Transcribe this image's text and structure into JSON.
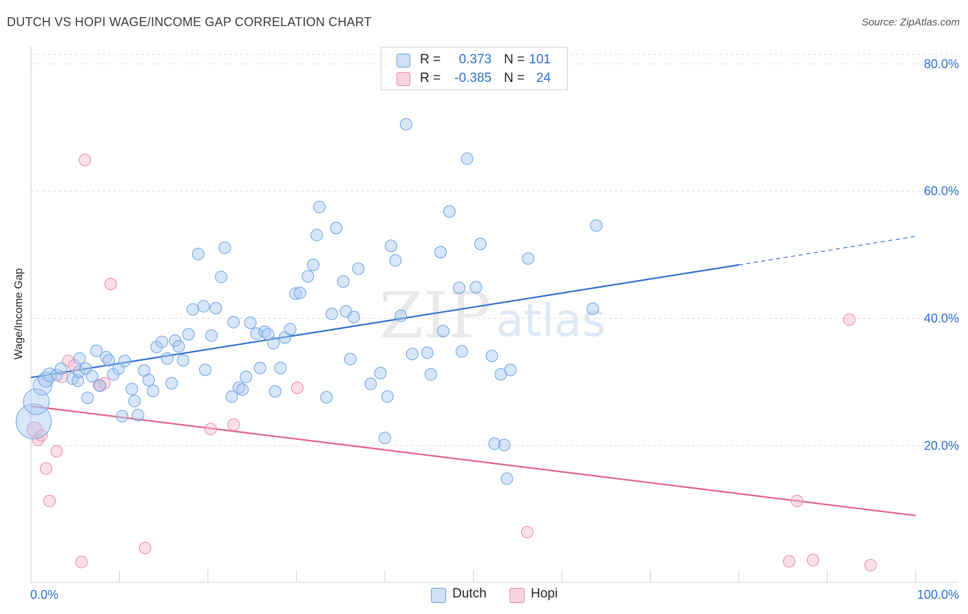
{
  "title": "DUTCH VS HOPI WAGE/INCOME GAP CORRELATION CHART",
  "source": "Source: ZipAtlas.com",
  "watermark": {
    "zip": "ZIP",
    "atlas": "atlas"
  },
  "legend": {
    "rows": [
      {
        "r_label": "R =",
        "r_value": "0.373",
        "n_label": "N =",
        "n_value": "101",
        "color": "#a7c8f2"
      },
      {
        "r_label": "R =",
        "r_value": "-0.385",
        "n_label": "N =",
        "n_value": "24",
        "color": "#f7b8cc"
      }
    ]
  },
  "bottom_legend": [
    {
      "label": "Dutch",
      "color": "#a7c8f2"
    },
    {
      "label": "Hopi",
      "color": "#f7b8cc"
    }
  ],
  "colors": {
    "dutch_fill": "#a7c8f2",
    "dutch_stroke": "#6c9fdf",
    "dutch_line": "#2f6fce",
    "hopi_fill": "#f7b8cc",
    "hopi_stroke": "#e98aa8",
    "hopi_line": "#e0608d",
    "tick_label": "#2f6fce",
    "grid": "#dddddd"
  },
  "chart_data": {
    "type": "scatter",
    "title": "DUTCH VS HOPI WAGE/INCOME GAP CORRELATION CHART",
    "xlabel": "",
    "ylabel": "Wage/Income Gap",
    "xlim": [
      0,
      100
    ],
    "ylim": [
      -1.5,
      81.5
    ],
    "x_tick_labels": [
      {
        "value": 0,
        "label": "0.0%"
      },
      {
        "value": 100,
        "label": "100.0%"
      }
    ],
    "y_tick_labels": [
      {
        "value": 20,
        "label": "20.0%"
      },
      {
        "value": 40,
        "label": "40.0%"
      },
      {
        "value": 60,
        "label": "60.0%"
      },
      {
        "value": 80,
        "label": "80.0%"
      }
    ],
    "grid": true,
    "legend_position": "top-center",
    "series": [
      {
        "name": "Dutch",
        "points": [
          [
            0.3,
            23.8,
            3
          ],
          [
            0.6,
            26.9,
            2.2
          ],
          [
            1.3,
            29.4,
            1.6
          ],
          [
            1.7,
            30.4,
            1.3
          ],
          [
            2.1,
            31.1,
            1.2
          ],
          [
            2.9,
            31.1,
            1
          ],
          [
            3.4,
            32.1,
            1
          ],
          [
            4.7,
            30.5,
            1
          ],
          [
            5.3,
            30.2,
            1
          ],
          [
            5.4,
            31.6,
            1
          ],
          [
            5.5,
            33.7,
            1
          ],
          [
            6.2,
            32.1,
            1
          ],
          [
            6.4,
            27.5,
            1
          ],
          [
            6.9,
            30.9,
            1
          ],
          [
            7.4,
            34.9,
            1
          ],
          [
            7.8,
            29.4,
            1
          ],
          [
            8.5,
            33.9,
            1
          ],
          [
            8.8,
            33.4,
            1
          ],
          [
            9.3,
            31.2,
            1
          ],
          [
            9.9,
            32.1,
            1
          ],
          [
            10.3,
            24.6,
            1
          ],
          [
            10.6,
            33.3,
            1
          ],
          [
            11.4,
            28.9,
            1
          ],
          [
            11.7,
            27.0,
            1
          ],
          [
            12.1,
            24.8,
            1
          ],
          [
            12.8,
            31.8,
            1
          ],
          [
            13.3,
            30.3,
            1
          ],
          [
            13.8,
            28.6,
            1
          ],
          [
            14.2,
            35.5,
            1
          ],
          [
            14.8,
            36.3,
            1
          ],
          [
            15.4,
            33.7,
            1
          ],
          [
            15.9,
            29.8,
            1
          ],
          [
            16.3,
            36.5,
            1
          ],
          [
            16.7,
            35.6,
            1
          ],
          [
            17.2,
            33.4,
            1
          ],
          [
            17.8,
            37.5,
            1
          ],
          [
            18.3,
            41.4,
            1
          ],
          [
            18.9,
            50.1,
            1
          ],
          [
            19.5,
            41.9,
            1
          ],
          [
            19.7,
            31.9,
            1
          ],
          [
            20.4,
            37.3,
            1
          ],
          [
            20.9,
            41.6,
            1
          ],
          [
            21.5,
            46.5,
            1
          ],
          [
            21.9,
            51.1,
            1
          ],
          [
            22.7,
            27.7,
            1
          ],
          [
            22.9,
            39.4,
            1
          ],
          [
            23.5,
            29.1,
            1
          ],
          [
            23.9,
            28.8,
            1
          ],
          [
            24.3,
            30.8,
            1
          ],
          [
            24.8,
            39.3,
            1
          ],
          [
            25.5,
            37.6,
            1
          ],
          [
            25.9,
            32.2,
            1
          ],
          [
            26.4,
            37.9,
            1
          ],
          [
            26.8,
            37.5,
            1
          ],
          [
            27.4,
            36.1,
            1
          ],
          [
            27.6,
            28.5,
            1
          ],
          [
            28.2,
            32.2,
            1
          ],
          [
            28.7,
            37.0,
            1
          ],
          [
            29.3,
            38.3,
            1
          ],
          [
            29.9,
            43.9,
            1
          ],
          [
            30.4,
            44.0,
            1
          ],
          [
            31.3,
            46.6,
            1
          ],
          [
            31.9,
            48.4,
            1
          ],
          [
            32.3,
            53.1,
            1
          ],
          [
            32.6,
            57.5,
            1
          ],
          [
            33.4,
            27.6,
            1
          ],
          [
            34.0,
            40.7,
            1
          ],
          [
            34.5,
            54.2,
            1
          ],
          [
            35.3,
            45.8,
            1
          ],
          [
            35.6,
            41.1,
            1
          ],
          [
            36.1,
            33.6,
            1
          ],
          [
            36.5,
            40.2,
            1
          ],
          [
            37.0,
            47.8,
            1
          ],
          [
            38.4,
            29.7,
            1
          ],
          [
            39.5,
            31.4,
            1
          ],
          [
            40.0,
            21.2,
            1
          ],
          [
            40.3,
            27.7,
            1
          ],
          [
            40.7,
            51.4,
            1
          ],
          [
            41.2,
            49.1,
            1
          ],
          [
            41.8,
            40.4,
            1
          ],
          [
            42.4,
            70.5,
            1
          ],
          [
            43.1,
            34.4,
            1
          ],
          [
            44.8,
            34.6,
            1
          ],
          [
            45.2,
            31.2,
            1
          ],
          [
            46.3,
            50.4,
            1
          ],
          [
            46.6,
            38.0,
            1
          ],
          [
            47.3,
            56.8,
            1
          ],
          [
            48.4,
            44.8,
            1
          ],
          [
            48.7,
            34.8,
            1
          ],
          [
            49.3,
            65.1,
            1
          ],
          [
            50.3,
            44.9,
            1
          ],
          [
            50.8,
            51.7,
            1
          ],
          [
            52.1,
            34.1,
            1
          ],
          [
            52.4,
            20.3,
            1
          ],
          [
            53.1,
            31.2,
            1
          ],
          [
            53.5,
            20.1,
            1
          ],
          [
            53.8,
            14.8,
            1
          ],
          [
            54.2,
            31.9,
            1
          ],
          [
            56.2,
            49.4,
            1
          ],
          [
            63.5,
            41.5,
            1
          ],
          [
            63.9,
            54.6,
            1
          ]
        ],
        "trend": {
          "x0": 0,
          "y0": 30.7,
          "x1": 80,
          "y1": 48.4,
          "dashed_x1": 100,
          "dashed_y1": 52.9
        }
      },
      {
        "name": "Hopi",
        "points": [
          [
            0.4,
            22.5,
            1.3
          ],
          [
            0.8,
            20.9,
            1
          ],
          [
            1.2,
            21.6,
            1
          ],
          [
            1.7,
            16.4,
            1
          ],
          [
            2.1,
            11.3,
            1
          ],
          [
            2.9,
            19.1,
            1
          ],
          [
            3.5,
            30.8,
            1
          ],
          [
            4.2,
            33.3,
            1
          ],
          [
            4.9,
            32.6,
            1
          ],
          [
            5.7,
            1.7,
            1
          ],
          [
            6.1,
            64.9,
            1
          ],
          [
            7.7,
            29.5,
            1
          ],
          [
            8.3,
            29.8,
            1
          ],
          [
            9.0,
            45.4,
            1
          ],
          [
            12.9,
            3.9,
            1
          ],
          [
            20.3,
            22.6,
            1
          ],
          [
            22.9,
            23.3,
            1
          ],
          [
            30.1,
            29.1,
            1
          ],
          [
            56.1,
            6.4,
            1
          ],
          [
            85.7,
            1.8,
            1
          ],
          [
            86.6,
            11.3,
            1
          ],
          [
            88.4,
            2.0,
            1
          ],
          [
            92.5,
            39.8,
            1
          ],
          [
            94.9,
            1.2,
            1
          ]
        ],
        "trend": {
          "x0": 0,
          "y0": 26.2,
          "x1": 100,
          "y1": 9.0
        }
      }
    ]
  }
}
